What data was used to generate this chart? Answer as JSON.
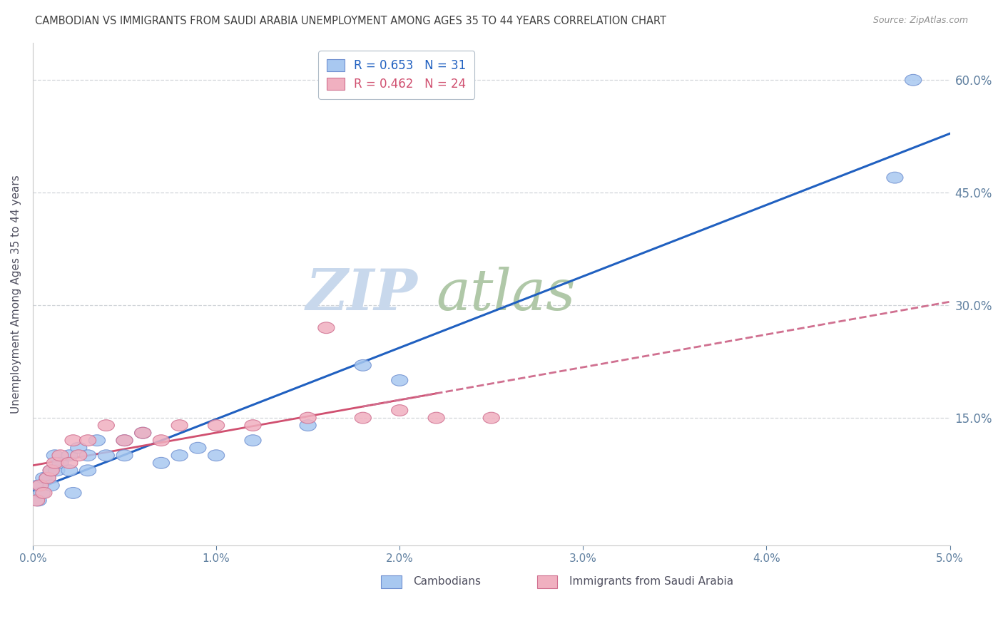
{
  "title": "CAMBODIAN VS IMMIGRANTS FROM SAUDI ARABIA UNEMPLOYMENT AMONG AGES 35 TO 44 YEARS CORRELATION CHART",
  "source_text": "Source: ZipAtlas.com",
  "ylabel": "Unemployment Among Ages 35 to 44 years",
  "xlabel_ticks": [
    "0.0%",
    "1.0%",
    "2.0%",
    "3.0%",
    "4.0%",
    "5.0%"
  ],
  "ylabel_right_ticks": [
    "15.0%",
    "30.0%",
    "45.0%",
    "60.0%"
  ],
  "xlim": [
    0.0,
    0.05
  ],
  "ylim": [
    -0.02,
    0.65
  ],
  "cambodian_x": [
    0.0003,
    0.0003,
    0.0005,
    0.0006,
    0.0008,
    0.001,
    0.001,
    0.0012,
    0.0013,
    0.0015,
    0.002,
    0.002,
    0.0022,
    0.0025,
    0.003,
    0.003,
    0.0035,
    0.004,
    0.005,
    0.005,
    0.006,
    0.007,
    0.008,
    0.009,
    0.01,
    0.012,
    0.015,
    0.018,
    0.02,
    0.047,
    0.048
  ],
  "cambodian_y": [
    0.04,
    0.06,
    0.05,
    0.07,
    0.07,
    0.06,
    0.08,
    0.1,
    0.08,
    0.09,
    0.08,
    0.1,
    0.05,
    0.11,
    0.08,
    0.1,
    0.12,
    0.1,
    0.1,
    0.12,
    0.13,
    0.09,
    0.1,
    0.11,
    0.1,
    0.12,
    0.14,
    0.22,
    0.2,
    0.47,
    0.6
  ],
  "saudi_x": [
    0.0002,
    0.0004,
    0.0006,
    0.0008,
    0.001,
    0.0012,
    0.0015,
    0.002,
    0.0022,
    0.0025,
    0.003,
    0.004,
    0.005,
    0.006,
    0.007,
    0.008,
    0.01,
    0.012,
    0.015,
    0.016,
    0.018,
    0.02,
    0.022,
    0.025
  ],
  "saudi_y": [
    0.04,
    0.06,
    0.05,
    0.07,
    0.08,
    0.09,
    0.1,
    0.09,
    0.12,
    0.1,
    0.12,
    0.14,
    0.12,
    0.13,
    0.12,
    0.14,
    0.14,
    0.14,
    0.15,
    0.27,
    0.15,
    0.16,
    0.15,
    0.15
  ],
  "cambodian_color": "#a8c8f0",
  "cambodian_edge_color": "#7090d0",
  "saudi_color": "#f0b0c0",
  "saudi_edge_color": "#d07090",
  "regression_cambodian_color": "#2060c0",
  "regression_saudi_color": "#d05070",
  "regression_saudi_dashed_color": "#d07090",
  "R_cambodian": 0.653,
  "N_cambodian": 31,
  "R_saudi": 0.462,
  "N_saudi": 24,
  "watermark_zip": "ZIP",
  "watermark_atlas": "atlas",
  "watermark_color_zip": "#c8d8ec",
  "watermark_color_atlas": "#b0c8a8",
  "background_color": "#ffffff",
  "title_color": "#404040",
  "axis_label_color": "#505060",
  "tick_label_color": "#6080a0",
  "grid_color": "#d0d4d8",
  "legend_label_cambodian": "Cambodians",
  "legend_label_saudi": "Immigrants from Saudi Arabia"
}
